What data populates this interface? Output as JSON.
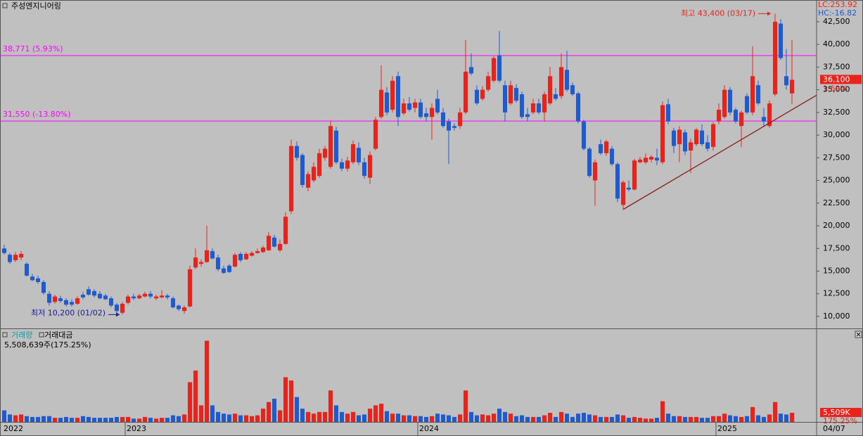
{
  "chart_data": {
    "type": "candlestick",
    "title": "주성엔지니어링",
    "up_color": "#e8231c",
    "down_color": "#1f5ad0",
    "ohlc": [
      [
        17500,
        17900,
        16800,
        17000
      ],
      [
        16800,
        17000,
        15800,
        16000
      ],
      [
        16200,
        17100,
        16000,
        16800
      ],
      [
        16500,
        17200,
        16200,
        16900
      ],
      [
        15800,
        16000,
        14400,
        14500
      ],
      [
        14400,
        14700,
        13900,
        14000
      ],
      [
        14200,
        14500,
        13600,
        13800
      ],
      [
        13800,
        14000,
        12400,
        12600
      ],
      [
        12500,
        12800,
        11200,
        11500
      ],
      [
        11600,
        12400,
        11400,
        12200
      ],
      [
        12000,
        12300,
        11500,
        11700
      ],
      [
        11800,
        12000,
        11100,
        11300
      ],
      [
        11600,
        11900,
        11100,
        11300
      ],
      [
        11400,
        12200,
        11300,
        12000
      ],
      [
        12400,
        12700,
        11900,
        12100
      ],
      [
        13000,
        13300,
        12300,
        12400
      ],
      [
        12800,
        13000,
        12100,
        12300
      ],
      [
        12500,
        12800,
        11900,
        12000
      ],
      [
        12300,
        12500,
        11800,
        11900
      ],
      [
        12000,
        12200,
        11000,
        11200
      ],
      [
        11300,
        11500,
        10400,
        10600
      ],
      [
        10400,
        11600,
        10200,
        11400
      ],
      [
        11500,
        12400,
        11300,
        12200
      ],
      [
        12200,
        12500,
        11800,
        12000
      ],
      [
        12000,
        12500,
        11900,
        12300
      ],
      [
        12200,
        12700,
        12100,
        12500
      ],
      [
        12500,
        12800,
        12000,
        12200
      ],
      [
        12000,
        12400,
        11800,
        12200
      ],
      [
        12100,
        12900,
        12000,
        12300
      ],
      [
        12300,
        12500,
        11900,
        12100
      ],
      [
        12000,
        12200,
        10900,
        11000
      ],
      [
        11200,
        11300,
        10600,
        10800
      ],
      [
        10600,
        11200,
        10300,
        11000
      ],
      [
        11100,
        15600,
        11000,
        15200
      ],
      [
        15400,
        17500,
        15200,
        16500
      ],
      [
        15800,
        16300,
        15500,
        16000
      ],
      [
        16000,
        20000,
        15900,
        17300
      ],
      [
        17200,
        17500,
        16300,
        16400
      ],
      [
        16500,
        16800,
        15000,
        15200
      ],
      [
        15300,
        15600,
        14700,
        14800
      ],
      [
        15600,
        15800,
        14800,
        14900
      ],
      [
        15500,
        17000,
        15400,
        16800
      ],
      [
        16900,
        17100,
        16000,
        16200
      ],
      [
        16300,
        17100,
        16200,
        16900
      ],
      [
        16700,
        17200,
        16600,
        17000
      ],
      [
        17000,
        17500,
        16900,
        17200
      ],
      [
        17100,
        17800,
        17000,
        17600
      ],
      [
        17300,
        19300,
        17200,
        18900
      ],
      [
        18700,
        19000,
        17600,
        17700
      ],
      [
        17300,
        18500,
        17100,
        18000
      ],
      [
        18000,
        21500,
        17900,
        21000
      ],
      [
        21600,
        29500,
        21300,
        28800
      ],
      [
        28800,
        29300,
        27200,
        27500
      ],
      [
        27800,
        28000,
        24200,
        24500
      ],
      [
        24200,
        26000,
        23800,
        25700
      ],
      [
        25000,
        27000,
        24800,
        26500
      ],
      [
        25500,
        28500,
        25300,
        28000
      ],
      [
        27500,
        28800,
        27200,
        28500
      ],
      [
        26500,
        31600,
        26300,
        31000
      ],
      [
        30500,
        30900,
        26800,
        27000
      ],
      [
        27000,
        27400,
        26000,
        26300
      ],
      [
        26300,
        27600,
        26000,
        27200
      ],
      [
        27000,
        29400,
        26800,
        29000
      ],
      [
        28600,
        29200,
        26700,
        27000
      ],
      [
        27000,
        27500,
        25200,
        25500
      ],
      [
        25300,
        28200,
        24600,
        27800
      ],
      [
        28500,
        32000,
        28300,
        31700
      ],
      [
        32000,
        37700,
        31800,
        35000
      ],
      [
        34700,
        35300,
        32200,
        32500
      ],
      [
        32800,
        36500,
        32500,
        36000
      ],
      [
        36500,
        37000,
        31000,
        32000
      ],
      [
        32400,
        34000,
        32200,
        33500
      ],
      [
        33500,
        34200,
        32600,
        32800
      ],
      [
        33000,
        34000,
        32500,
        33600
      ],
      [
        33600,
        34000,
        31800,
        32000
      ],
      [
        32400,
        33000,
        31500,
        32000
      ],
      [
        32000,
        33500,
        29500,
        33000
      ],
      [
        34000,
        35000,
        32300,
        32500
      ],
      [
        32500,
        33000,
        30800,
        31000
      ],
      [
        31500,
        31800,
        26800,
        30500
      ],
      [
        31000,
        31300,
        30500,
        30800
      ],
      [
        31000,
        33000,
        30700,
        32500
      ],
      [
        32500,
        40500,
        32300,
        37000
      ],
      [
        37500,
        39000,
        36600,
        36800
      ],
      [
        35000,
        35500,
        33300,
        33500
      ],
      [
        34000,
        35400,
        33800,
        35000
      ],
      [
        35000,
        37000,
        34800,
        36500
      ],
      [
        36000,
        38700,
        35800,
        38500
      ],
      [
        38800,
        41500,
        35800,
        36000
      ],
      [
        35500,
        36000,
        31500,
        32500
      ],
      [
        33500,
        36000,
        33300,
        35500
      ],
      [
        35200,
        35600,
        33600,
        33800
      ],
      [
        34500,
        34800,
        31800,
        32000
      ],
      [
        32300,
        33000,
        31500,
        32000
      ],
      [
        32500,
        34000,
        32300,
        33500
      ],
      [
        33500,
        34000,
        32300,
        32500
      ],
      [
        32500,
        34800,
        31500,
        34500
      ],
      [
        33500,
        37500,
        33300,
        36500
      ],
      [
        34500,
        35200,
        33800,
        34000
      ],
      [
        34300,
        39000,
        34000,
        37500
      ],
      [
        37200,
        39300,
        34800,
        35000
      ],
      [
        35500,
        35800,
        34300,
        34500
      ],
      [
        34600,
        34800,
        31300,
        31500
      ],
      [
        31500,
        31700,
        28300,
        28500
      ],
      [
        28500,
        28700,
        25300,
        25500
      ],
      [
        25000,
        27300,
        22200,
        27000
      ],
      [
        29000,
        29500,
        27800,
        28000
      ],
      [
        28000,
        29500,
        27700,
        29300
      ],
      [
        28500,
        28800,
        26600,
        26800
      ],
      [
        26800,
        27000,
        22600,
        23000
      ],
      [
        22300,
        25000,
        21800,
        24800
      ],
      [
        24200,
        25000,
        23800,
        24000
      ],
      [
        24000,
        27400,
        23900,
        27200
      ],
      [
        27000,
        27600,
        26900,
        27300
      ],
      [
        27000,
        28000,
        26800,
        27500
      ],
      [
        27300,
        27800,
        27000,
        27600
      ],
      [
        27500,
        28500,
        26700,
        27200
      ],
      [
        27000,
        33700,
        26800,
        33300
      ],
      [
        33400,
        34000,
        31200,
        31500
      ],
      [
        30500,
        30800,
        28000,
        28800
      ],
      [
        29000,
        31000,
        27000,
        30600
      ],
      [
        30300,
        30600,
        27800,
        28200
      ],
      [
        28300,
        29600,
        25800,
        29200
      ],
      [
        29000,
        30800,
        28800,
        30600
      ],
      [
        30500,
        31200,
        28800,
        29000
      ],
      [
        29200,
        30000,
        28200,
        28500
      ],
      [
        28700,
        31400,
        28300,
        31200
      ],
      [
        31500,
        33500,
        31200,
        32800
      ],
      [
        32000,
        35500,
        31800,
        35000
      ],
      [
        35000,
        35300,
        32200,
        32500
      ],
      [
        32800,
        33000,
        31300,
        31500
      ],
      [
        31000,
        32700,
        28700,
        32500
      ],
      [
        34300,
        34600,
        32300,
        32500
      ],
      [
        32500,
        39800,
        32200,
        36500
      ],
      [
        35500,
        36000,
        33300,
        33500
      ],
      [
        32000,
        33000,
        31000,
        31500
      ],
      [
        31000,
        33800,
        30800,
        33500
      ],
      [
        34500,
        43400,
        34300,
        42500
      ],
      [
        42300,
        42800,
        38300,
        38500
      ],
      [
        36500,
        39500,
        35000,
        35500
      ],
      [
        34600,
        40500,
        33400,
        36100
      ]
    ],
    "volume": [
      7000,
      4500,
      4000,
      4500,
      3500,
      3000,
      3000,
      3500,
      3500,
      2500,
      2500,
      3000,
      2500,
      2500,
      3500,
      3000,
      2500,
      2500,
      2500,
      2500,
      3000,
      3000,
      3000,
      2000,
      2000,
      3000,
      2500,
      2000,
      2500,
      2500,
      4000,
      3500,
      4500,
      24000,
      31000,
      10000,
      49000,
      10000,
      6000,
      5000,
      4500,
      5000,
      4000,
      4000,
      3500,
      4000,
      8000,
      12000,
      14000,
      7000,
      27000,
      25000,
      15000,
      8000,
      6000,
      5000,
      6000,
      6000,
      19000,
      10000,
      6000,
      5000,
      6000,
      4000,
      4500,
      8000,
      10000,
      11000,
      6500,
      5000,
      5000,
      4000,
      4000,
      3500,
      3500,
      3000,
      3500,
      5000,
      4500,
      4000,
      3000,
      4500,
      19000,
      6000,
      4000,
      4500,
      4000,
      5000,
      8000,
      6000,
      5000,
      3500,
      4000,
      3000,
      3000,
      3000,
      4000,
      5500,
      3000,
      6000,
      5000,
      3000,
      5000,
      5500,
      4500,
      4000,
      3000,
      3000,
      3000,
      4500,
      4000,
      2500,
      3000,
      2500,
      2000,
      2000,
      2500,
      12500,
      5000,
      3500,
      3500,
      3000,
      3000,
      3000,
      2500,
      2500,
      3500,
      3500,
      5000,
      4000,
      3500,
      3000,
      3500,
      9000,
      4000,
      3000,
      4500,
      12000,
      5000,
      4500,
      5509
    ],
    "categories": [
      "2022",
      null,
      null,
      null,
      null,
      null,
      null,
      null,
      null,
      null,
      null,
      null,
      null,
      null,
      null,
      null,
      null,
      null,
      null,
      null,
      null,
      null,
      "2023",
      null,
      null,
      null,
      null,
      null,
      null,
      null,
      null,
      null,
      null,
      null,
      null,
      null,
      null,
      null,
      null,
      null,
      null,
      null,
      null,
      null,
      null,
      null,
      null,
      null,
      null,
      null,
      null,
      null,
      null,
      null,
      null,
      null,
      null,
      null,
      null,
      null,
      null,
      null,
      null,
      null,
      null,
      null,
      null,
      null,
      null,
      null,
      null,
      null,
      null,
      null,
      "2024",
      null,
      null,
      null,
      null,
      null,
      null,
      null,
      null,
      null,
      null,
      null,
      null,
      null,
      null,
      null,
      null,
      null,
      null,
      null,
      null,
      null,
      null,
      null,
      null,
      null,
      null,
      null,
      null,
      null,
      null,
      null,
      null,
      null,
      null,
      null,
      null,
      null,
      null,
      null,
      null,
      null,
      null,
      null,
      null,
      null,
      null,
      null,
      null,
      null,
      null,
      null,
      null,
      "2025",
      null,
      null,
      null,
      null,
      null,
      null,
      null,
      null,
      null,
      null,
      null,
      null,
      null
    ],
    "last_date": "04/07",
    "ylim": [
      8680,
      44900
    ],
    "yticks": [
      {
        "value": 10000,
        "label": "10,000"
      },
      {
        "value": 12500,
        "label": "12,500"
      },
      {
        "value": 15000,
        "label": "15,000"
      },
      {
        "value": 17500,
        "label": "17,500"
      },
      {
        "value": 20000,
        "label": "20,000"
      },
      {
        "value": 22500,
        "label": "22,500"
      },
      {
        "value": 25000,
        "label": "25,000"
      },
      {
        "value": 27500,
        "label": "27,500"
      },
      {
        "value": 30000,
        "label": "30,000"
      },
      {
        "value": 32500,
        "label": "32,500"
      },
      {
        "value": 35000,
        "label": "35,000"
      },
      {
        "value": 37500,
        "label": "37,500"
      },
      {
        "value": 40000,
        "label": "40,000"
      },
      {
        "value": 42500,
        "label": "42,500"
      }
    ],
    "volume_lim": [
      0,
      56000
    ],
    "lc_label": "LC:253.92",
    "hc_label": "HC:-16.82",
    "last_price": {
      "value": 36100,
      "label": "36,100"
    },
    "last_change": "1.69%",
    "last_volume_label": "5,509K",
    "last_volume_ratio": "175.25%",
    "hlines": [
      {
        "value": 38771,
        "label": "38,771 (5.93%)",
        "color": "#ff00ff"
      },
      {
        "value": 31550,
        "label": "31,550 (-13.80%)",
        "color": "#ff00ff"
      }
    ],
    "trendline": {
      "values": [
        21800,
        34400
      ],
      "color": "#8b1a1a"
    },
    "high_annotation": "최고 43,400 (03/17)",
    "low_annotation": "최저 10,200 (01/02)",
    "volume_title": "거래량",
    "amount_title": "거래대금",
    "volume_info": "5,508,639주(175.25%)"
  }
}
